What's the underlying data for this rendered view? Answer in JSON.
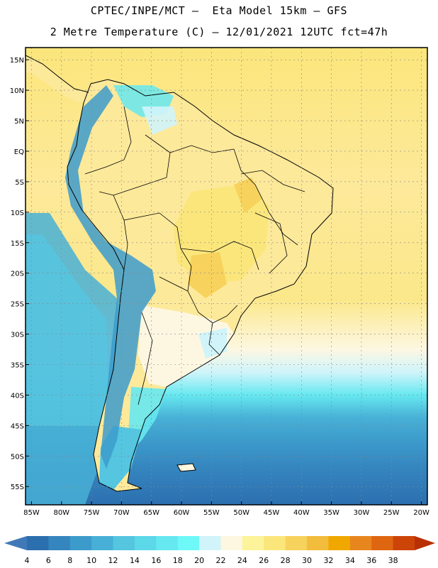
{
  "header": {
    "line1": "CPTEC/INPE/MCT –  Eta Model 15km – GFS",
    "line2": "2 Metre Temperature (C) – 12/01/2021 12UTC fct=47h"
  },
  "map": {
    "lon_range": [
      -86,
      -19
    ],
    "lat_range": [
      -58,
      17
    ],
    "lon_ticks": [
      {
        "value": -85,
        "label": "85W"
      },
      {
        "value": -80,
        "label": "80W"
      },
      {
        "value": -75,
        "label": "75W"
      },
      {
        "value": -70,
        "label": "70W"
      },
      {
        "value": -65,
        "label": "65W"
      },
      {
        "value": -60,
        "label": "60W"
      },
      {
        "value": -55,
        "label": "55W"
      },
      {
        "value": -50,
        "label": "50W"
      },
      {
        "value": -45,
        "label": "45W"
      },
      {
        "value": -40,
        "label": "40W"
      },
      {
        "value": -35,
        "label": "35W"
      },
      {
        "value": -30,
        "label": "30W"
      },
      {
        "value": -25,
        "label": "25W"
      },
      {
        "value": -20,
        "label": "20W"
      }
    ],
    "lat_ticks": [
      {
        "value": 15,
        "label": "15N"
      },
      {
        "value": 10,
        "label": "10N"
      },
      {
        "value": 5,
        "label": "5N"
      },
      {
        "value": 0,
        "label": "EQ"
      },
      {
        "value": -5,
        "label": "5S"
      },
      {
        "value": -10,
        "label": "10S"
      },
      {
        "value": -15,
        "label": "15S"
      },
      {
        "value": -20,
        "label": "20S"
      },
      {
        "value": -25,
        "label": "25S"
      },
      {
        "value": -30,
        "label": "30S"
      },
      {
        "value": -35,
        "label": "35S"
      },
      {
        "value": -40,
        "label": "40S"
      },
      {
        "value": -45,
        "label": "45S"
      },
      {
        "value": -50,
        "label": "50S"
      },
      {
        "value": -55,
        "label": "55S"
      }
    ],
    "grid": true
  },
  "colorbar": {
    "labels": [
      "4",
      "6",
      "8",
      "10",
      "12",
      "14",
      "16",
      "18",
      "20",
      "22",
      "24",
      "26",
      "28",
      "30",
      "32",
      "34",
      "36",
      "38"
    ],
    "colors": [
      "#4178b8",
      "#2c6faf",
      "#3585bf",
      "#3c9bcb",
      "#48b0d6",
      "#55c5e0",
      "#5cd8e8",
      "#66e8f0",
      "#6ff8f8",
      "#d0f4fa",
      "#fdf7e2",
      "#fdf39a",
      "#fbe67c",
      "#f7d25c",
      "#f2bc3c",
      "#f0a800",
      "#e8861e",
      "#df6610",
      "#cc4408",
      "#b93004"
    ]
  }
}
